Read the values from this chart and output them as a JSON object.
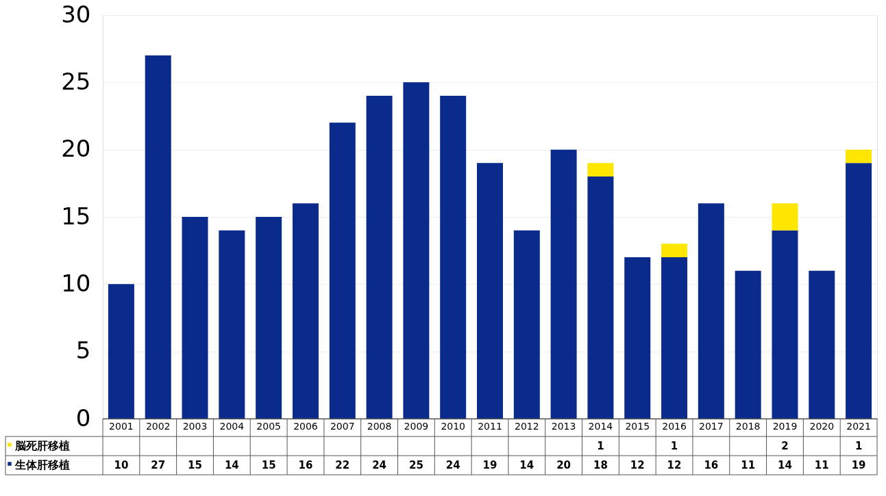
{
  "chart_data": {
    "type": "bar",
    "stacked": true,
    "data_labels": true,
    "grid": "y",
    "legend": "bottom left",
    "categories": [
      "2001",
      "2002",
      "2003",
      "2004",
      "2005",
      "2006",
      "2007",
      "2008",
      "2009",
      "2010",
      "2011",
      "2012",
      "2013",
      "2014",
      "2015",
      "2016",
      "2017",
      "2018",
      "2019",
      "2020",
      "2021"
    ],
    "series": [
      {
        "name": "生体肝移植",
        "color": "#0a2a8c",
        "values": [
          10,
          27,
          15,
          14,
          15,
          16,
          22,
          24,
          25,
          24,
          19,
          14,
          20,
          18,
          12,
          12,
          16,
          11,
          14,
          11,
          19
        ]
      },
      {
        "name": "脳死肝移植",
        "color": "#ffe600",
        "values": [
          null,
          null,
          null,
          null,
          null,
          null,
          null,
          null,
          null,
          null,
          null,
          null,
          null,
          1,
          null,
          1,
          null,
          null,
          2,
          null,
          1
        ]
      }
    ],
    "ylim": [
      0,
      30
    ],
    "yticks": [
      0,
      5,
      10,
      15,
      20,
      25,
      30
    ]
  }
}
